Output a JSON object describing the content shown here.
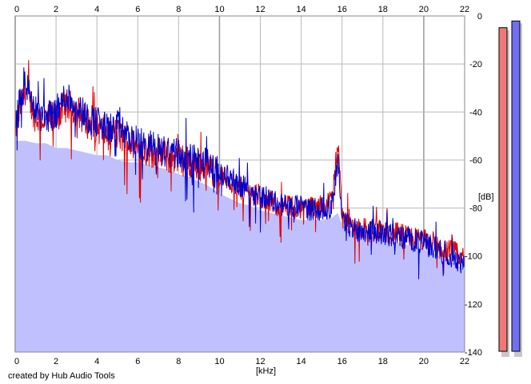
{
  "chart_data": {
    "type": "area",
    "xlabel": "[kHz]",
    "ylabel": "[dB]",
    "xlim": [
      0,
      22
    ],
    "ylim": [
      -140,
      0
    ],
    "x_ticks": [
      0,
      2,
      4,
      6,
      8,
      10,
      12,
      14,
      16,
      18,
      20,
      22
    ],
    "y_ticks": [
      0,
      -20,
      -40,
      -60,
      -80,
      -100,
      -120,
      -140
    ],
    "y_tick_labels": [
      "0",
      "-20",
      "-40",
      "-60",
      "-80",
      "-100",
      "-120",
      "-140"
    ],
    "grid": true,
    "footer": "created by Hub Audio Tools",
    "series": [
      {
        "color": "#0000cc",
        "x": [
          0,
          0.5,
          1,
          1.5,
          2,
          2.5,
          3,
          3.5,
          4,
          4.5,
          5,
          5.5,
          6,
          6.5,
          7,
          7.5,
          8,
          8.5,
          9,
          9.5,
          10,
          10.5,
          11,
          11.5,
          12,
          12.5,
          13,
          13.5,
          14,
          14.5,
          15,
          15.5,
          15.8,
          16,
          16.5,
          17,
          17.5,
          18,
          18.5,
          19,
          19.5,
          20,
          20.5,
          21,
          21.5,
          22
        ],
        "values": [
          -44,
          -25,
          -38,
          -40,
          -38,
          -31,
          -35,
          -40,
          -42,
          -45,
          -44,
          -48,
          -51,
          -52,
          -53,
          -55,
          -55,
          -58,
          -58,
          -60,
          -64,
          -66,
          -69,
          -71,
          -73,
          -75,
          -77,
          -78,
          -78,
          -79,
          -79,
          -78,
          -58,
          -83,
          -87,
          -88,
          -88,
          -89,
          -90,
          -91,
          -92,
          -93,
          -95,
          -97,
          -99,
          -103
        ]
      },
      {
        "color": "#e00000",
        "x": [
          0,
          0.5,
          1,
          1.5,
          2,
          2.5,
          3,
          3.5,
          4,
          4.5,
          5,
          5.5,
          6,
          6.5,
          7,
          7.5,
          8,
          8.5,
          9,
          9.5,
          10,
          10.5,
          11,
          11.5,
          12,
          12.5,
          13,
          13.5,
          14,
          14.5,
          15,
          15.5,
          15.8,
          16,
          16.5,
          17,
          17.5,
          18,
          18.5,
          19,
          19.5,
          20,
          20.5,
          21,
          21.5,
          22
        ],
        "values": [
          -45,
          -28,
          -40,
          -41,
          -40,
          -35,
          -37,
          -42,
          -44,
          -47,
          -47,
          -50,
          -53,
          -54,
          -55,
          -57,
          -57,
          -59,
          -60,
          -61,
          -65,
          -67,
          -70,
          -72,
          -74,
          -76,
          -78,
          -78,
          -78,
          -78,
          -78,
          -75,
          -50,
          -82,
          -86,
          -87,
          -88,
          -88,
          -89,
          -90,
          -91,
          -92,
          -94,
          -96,
          -97,
          -100
        ]
      },
      {
        "color": "#c0c0ff",
        "x": [
          0,
          0.5,
          1,
          1.5,
          2,
          2.5,
          3,
          3.5,
          4,
          4.5,
          5,
          5.5,
          6,
          6.5,
          7,
          7.5,
          8,
          8.5,
          9,
          9.5,
          10,
          10.5,
          11,
          11.5,
          12,
          12.5,
          13,
          13.5,
          14,
          14.5,
          15,
          15.5,
          15.8,
          16,
          16.5,
          17,
          17.5,
          18,
          18.5,
          19,
          19.5,
          20,
          20.5,
          21,
          21.5,
          22
        ],
        "values": [
          -52,
          -52,
          -53,
          -53,
          -55,
          -55,
          -56,
          -57,
          -58,
          -58,
          -60,
          -61,
          -61,
          -62,
          -63,
          -64,
          -66,
          -67,
          -69,
          -71,
          -74,
          -76,
          -78,
          -79,
          -81,
          -82,
          -83,
          -84,
          -85,
          -85,
          -85,
          -84,
          -82,
          -87,
          -90,
          -91,
          -92,
          -93,
          -94,
          -95,
          -96,
          -97,
          -99,
          -101,
          -103,
          -106
        ]
      }
    ]
  },
  "meters": [
    {
      "color": "#f07878",
      "level": 0.965
    },
    {
      "color": "#7070f0",
      "level": 0.985
    }
  ]
}
